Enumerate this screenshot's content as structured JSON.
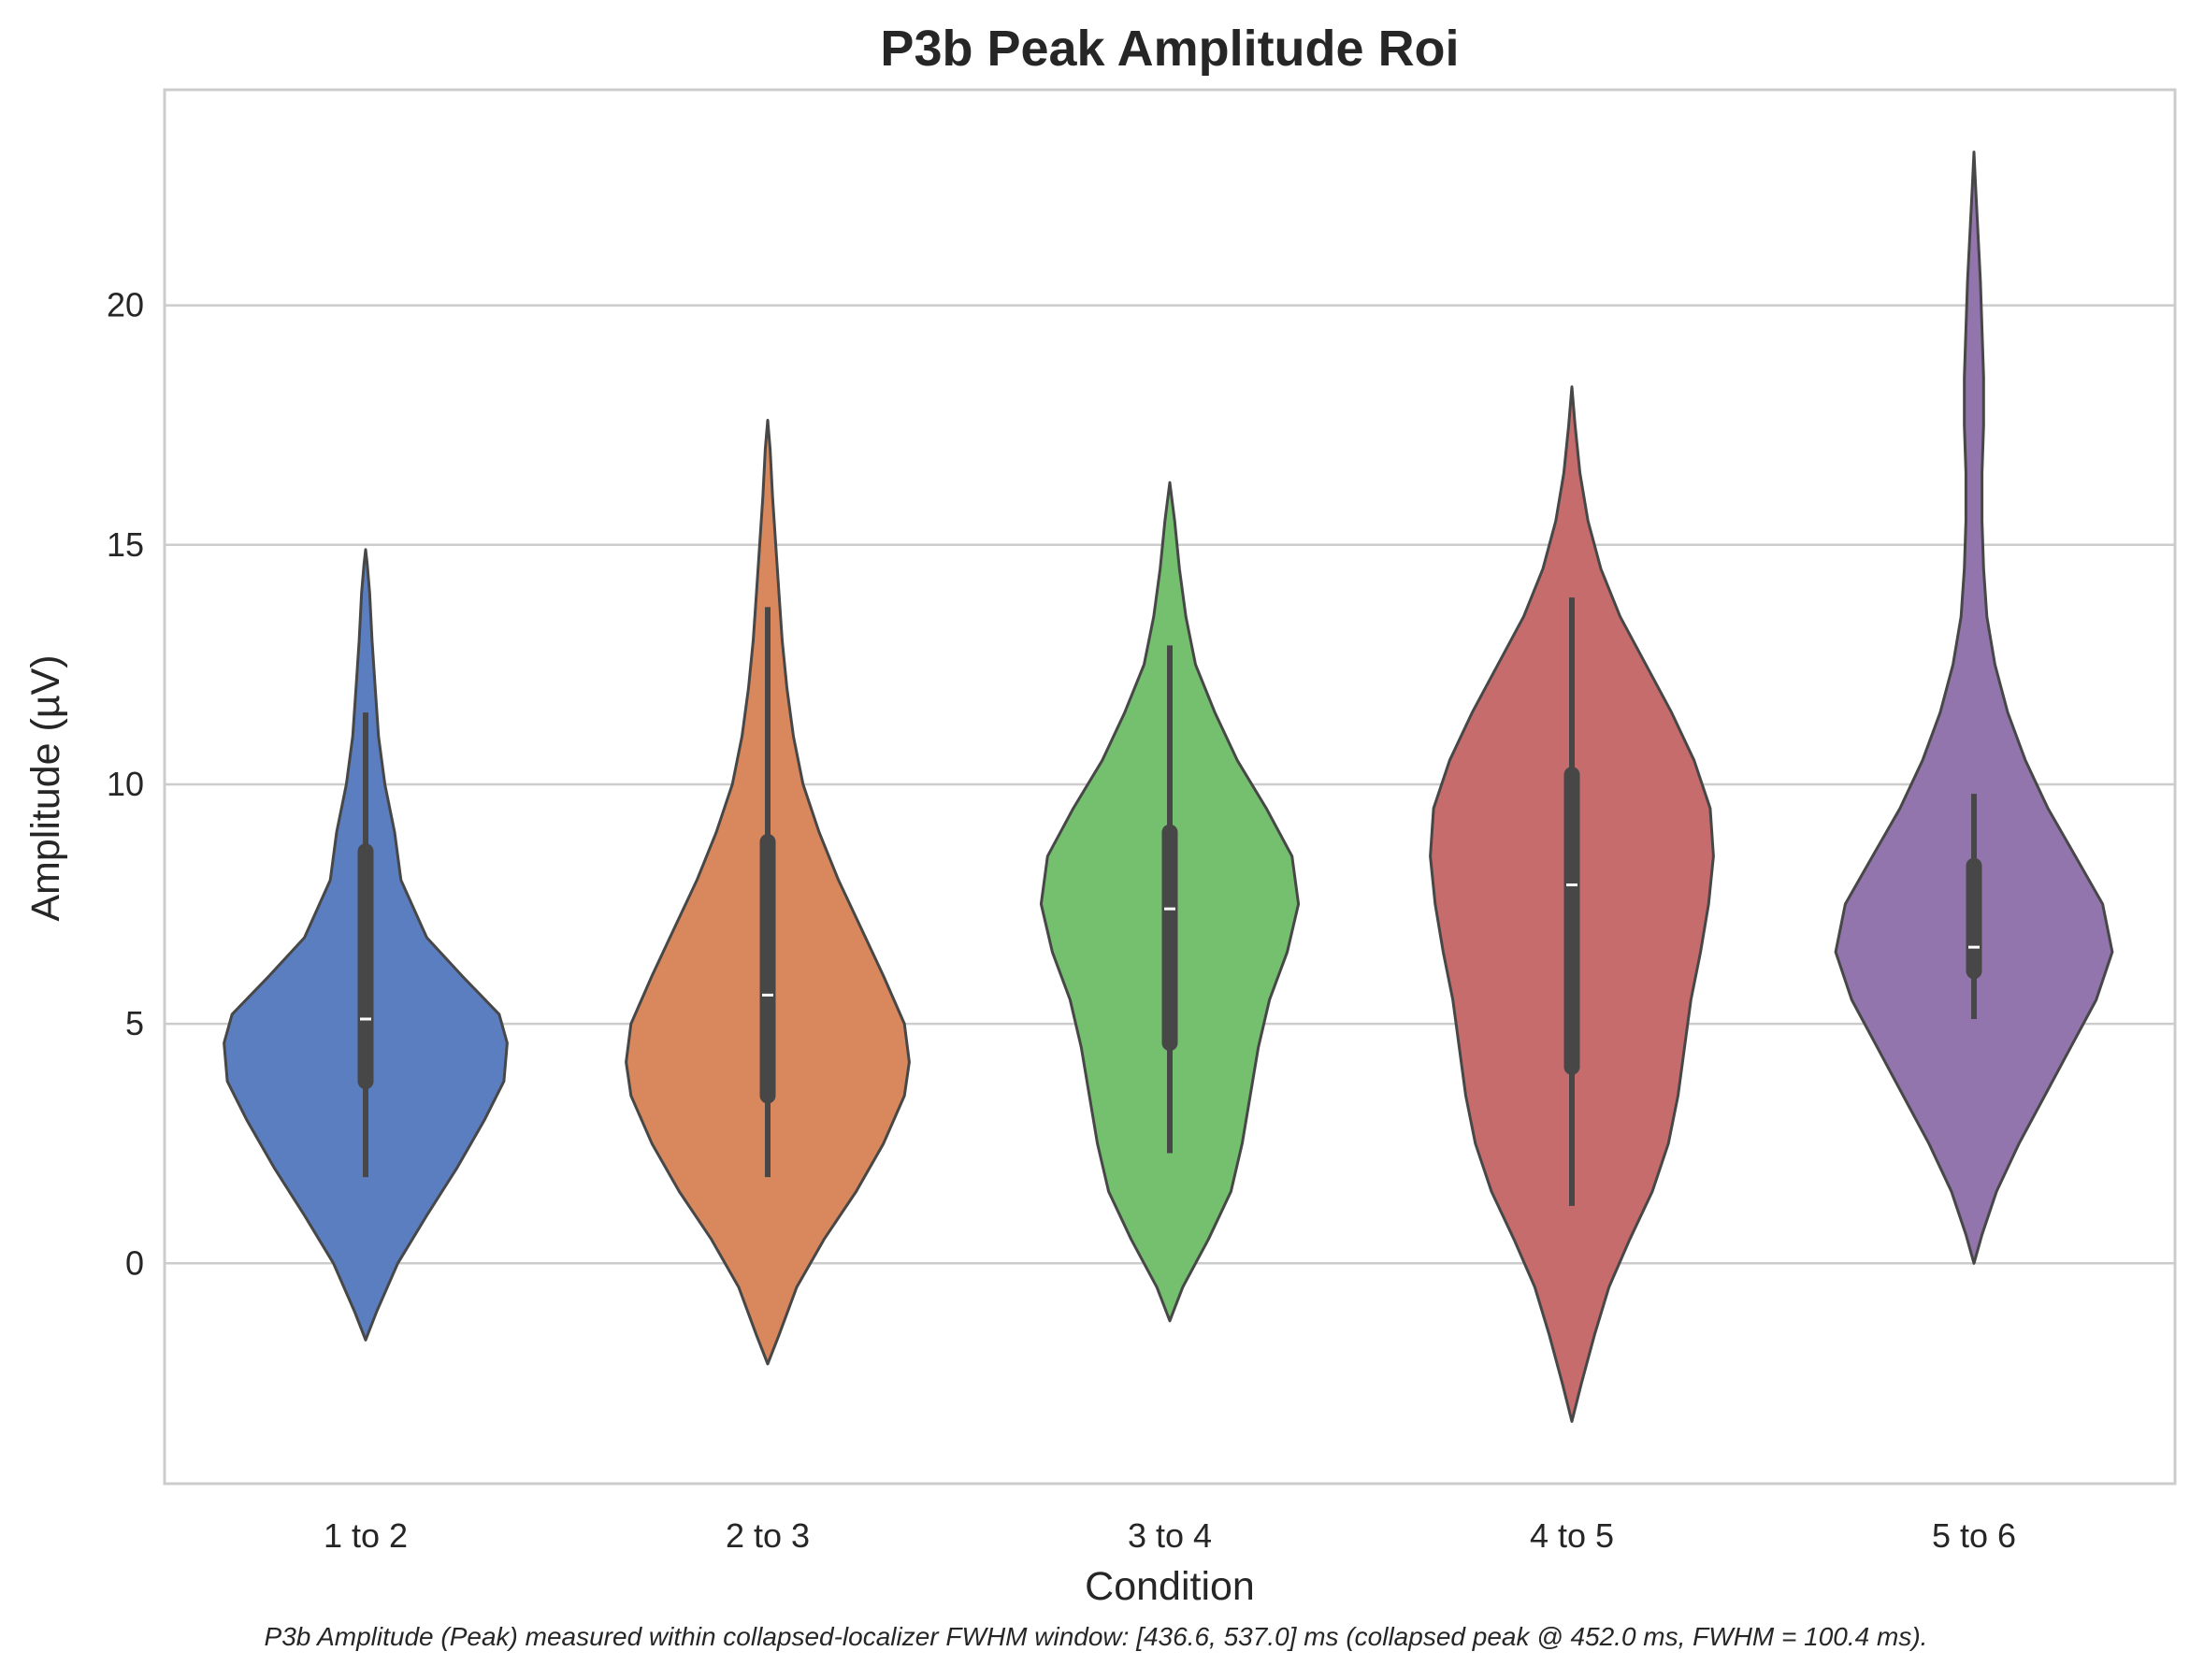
{
  "chart_data": {
    "type": "violin",
    "title": "P3b Peak Amplitude Roi",
    "xlabel": "Condition",
    "ylabel": "Amplitude (µV)",
    "categories": [
      "1 to 2",
      "2 to 3",
      "3 to 4",
      "4 to 5",
      "5 to 6"
    ],
    "colors": [
      "#5b7ec0",
      "#d9885d",
      "#74c06f",
      "#c66c6c",
      "#9275ad"
    ],
    "ylim": [
      -4.6,
      24.5
    ],
    "yticks": [
      0,
      5,
      10,
      15,
      20
    ],
    "grid": "y",
    "violins": [
      {
        "category": "1 to 2",
        "min": -1.6,
        "max": 14.9,
        "whisker_low": 1.8,
        "q1": 3.8,
        "median": 5.1,
        "q3": 8.6,
        "whisker_high": 11.5,
        "density": [
          [
            -1.6,
            0
          ],
          [
            -1.0,
            0.07
          ],
          [
            0,
            0.2
          ],
          [
            1,
            0.38
          ],
          [
            2,
            0.57
          ],
          [
            3,
            0.74
          ],
          [
            3.8,
            0.86
          ],
          [
            4.6,
            0.88
          ],
          [
            5.2,
            0.83
          ],
          [
            6,
            0.6
          ],
          [
            6.8,
            0.38
          ],
          [
            8,
            0.22
          ],
          [
            9,
            0.18
          ],
          [
            10,
            0.12
          ],
          [
            11,
            0.08
          ],
          [
            12,
            0.06
          ],
          [
            13,
            0.04
          ],
          [
            14,
            0.025
          ],
          [
            14.6,
            0.01
          ],
          [
            14.9,
            0
          ]
        ]
      },
      {
        "category": "2 to 3",
        "min": -2.1,
        "max": 17.6,
        "whisker_low": 1.8,
        "q1": 3.5,
        "median": 5.6,
        "q3": 8.8,
        "whisker_high": 13.7,
        "density": [
          [
            -2.1,
            0
          ],
          [
            -1.5,
            0.07
          ],
          [
            -0.5,
            0.18
          ],
          [
            0.5,
            0.35
          ],
          [
            1.5,
            0.55
          ],
          [
            2.5,
            0.72
          ],
          [
            3.5,
            0.85
          ],
          [
            4.2,
            0.88
          ],
          [
            5,
            0.85
          ],
          [
            6,
            0.72
          ],
          [
            7,
            0.58
          ],
          [
            8,
            0.44
          ],
          [
            9,
            0.32
          ],
          [
            10,
            0.22
          ],
          [
            11,
            0.16
          ],
          [
            12,
            0.12
          ],
          [
            13,
            0.09
          ],
          [
            14,
            0.07
          ],
          [
            15,
            0.05
          ],
          [
            16,
            0.03
          ],
          [
            17,
            0.015
          ],
          [
            17.6,
            0
          ]
        ]
      },
      {
        "category": "3 to 4",
        "min": -1.2,
        "max": 16.3,
        "whisker_low": 2.3,
        "q1": 4.6,
        "median": 7.4,
        "q3": 9.0,
        "whisker_high": 12.9,
        "density": [
          [
            -1.2,
            0
          ],
          [
            -0.5,
            0.08
          ],
          [
            0.5,
            0.24
          ],
          [
            1.5,
            0.38
          ],
          [
            2.5,
            0.45
          ],
          [
            3.5,
            0.5
          ],
          [
            4.5,
            0.55
          ],
          [
            5.5,
            0.62
          ],
          [
            6.5,
            0.73
          ],
          [
            7.5,
            0.8
          ],
          [
            8.5,
            0.76
          ],
          [
            9.5,
            0.6
          ],
          [
            10.5,
            0.42
          ],
          [
            11.5,
            0.28
          ],
          [
            12.5,
            0.16
          ],
          [
            13.5,
            0.1
          ],
          [
            14.5,
            0.06
          ],
          [
            15.5,
            0.03
          ],
          [
            16.3,
            0
          ]
        ]
      },
      {
        "category": "4 to 5",
        "min": -3.3,
        "max": 18.3,
        "whisker_low": 1.2,
        "q1": 4.1,
        "median": 7.9,
        "q3": 10.2,
        "whisker_high": 13.9,
        "density": [
          [
            -3.3,
            0
          ],
          [
            -2.5,
            0.06
          ],
          [
            -1.5,
            0.14
          ],
          [
            -0.5,
            0.23
          ],
          [
            0.5,
            0.36
          ],
          [
            1.5,
            0.5
          ],
          [
            2.5,
            0.6
          ],
          [
            3.5,
            0.66
          ],
          [
            4.5,
            0.7
          ],
          [
            5.5,
            0.74
          ],
          [
            6.5,
            0.8
          ],
          [
            7.5,
            0.85
          ],
          [
            8.5,
            0.88
          ],
          [
            9.5,
            0.86
          ],
          [
            10.5,
            0.76
          ],
          [
            11.5,
            0.62
          ],
          [
            12.5,
            0.46
          ],
          [
            13.5,
            0.3
          ],
          [
            14.5,
            0.18
          ],
          [
            15.5,
            0.1
          ],
          [
            16.5,
            0.05
          ],
          [
            17.5,
            0.02
          ],
          [
            18.3,
            0
          ]
        ]
      },
      {
        "category": "5 to 6",
        "min": 0.0,
        "max": 23.2,
        "whisker_low": 5.1,
        "q1": 6.1,
        "median": 6.6,
        "q3": 8.3,
        "whisker_high": 9.8,
        "density": [
          [
            0,
            0
          ],
          [
            0.6,
            0.05
          ],
          [
            1.5,
            0.14
          ],
          [
            2.5,
            0.28
          ],
          [
            3.5,
            0.44
          ],
          [
            4.5,
            0.6
          ],
          [
            5.5,
            0.76
          ],
          [
            6.5,
            0.86
          ],
          [
            7.5,
            0.8
          ],
          [
            8.5,
            0.63
          ],
          [
            9.5,
            0.46
          ],
          [
            10.5,
            0.32
          ],
          [
            11.5,
            0.21
          ],
          [
            12.5,
            0.13
          ],
          [
            13.5,
            0.08
          ],
          [
            14.5,
            0.06
          ],
          [
            15.5,
            0.05
          ],
          [
            16.5,
            0.05
          ],
          [
            17.5,
            0.06
          ],
          [
            18.5,
            0.06
          ],
          [
            19.5,
            0.05
          ],
          [
            20.5,
            0.04
          ],
          [
            21.5,
            0.025
          ],
          [
            22.5,
            0.01
          ],
          [
            23.2,
            0
          ]
        ]
      }
    ]
  },
  "caption": "P3b Amplitude (Peak) measured within collapsed-localizer FWHM window: [436.6, 537.0] ms (collapsed peak @ 452.0 ms, FWHM = 100.4 ms)."
}
